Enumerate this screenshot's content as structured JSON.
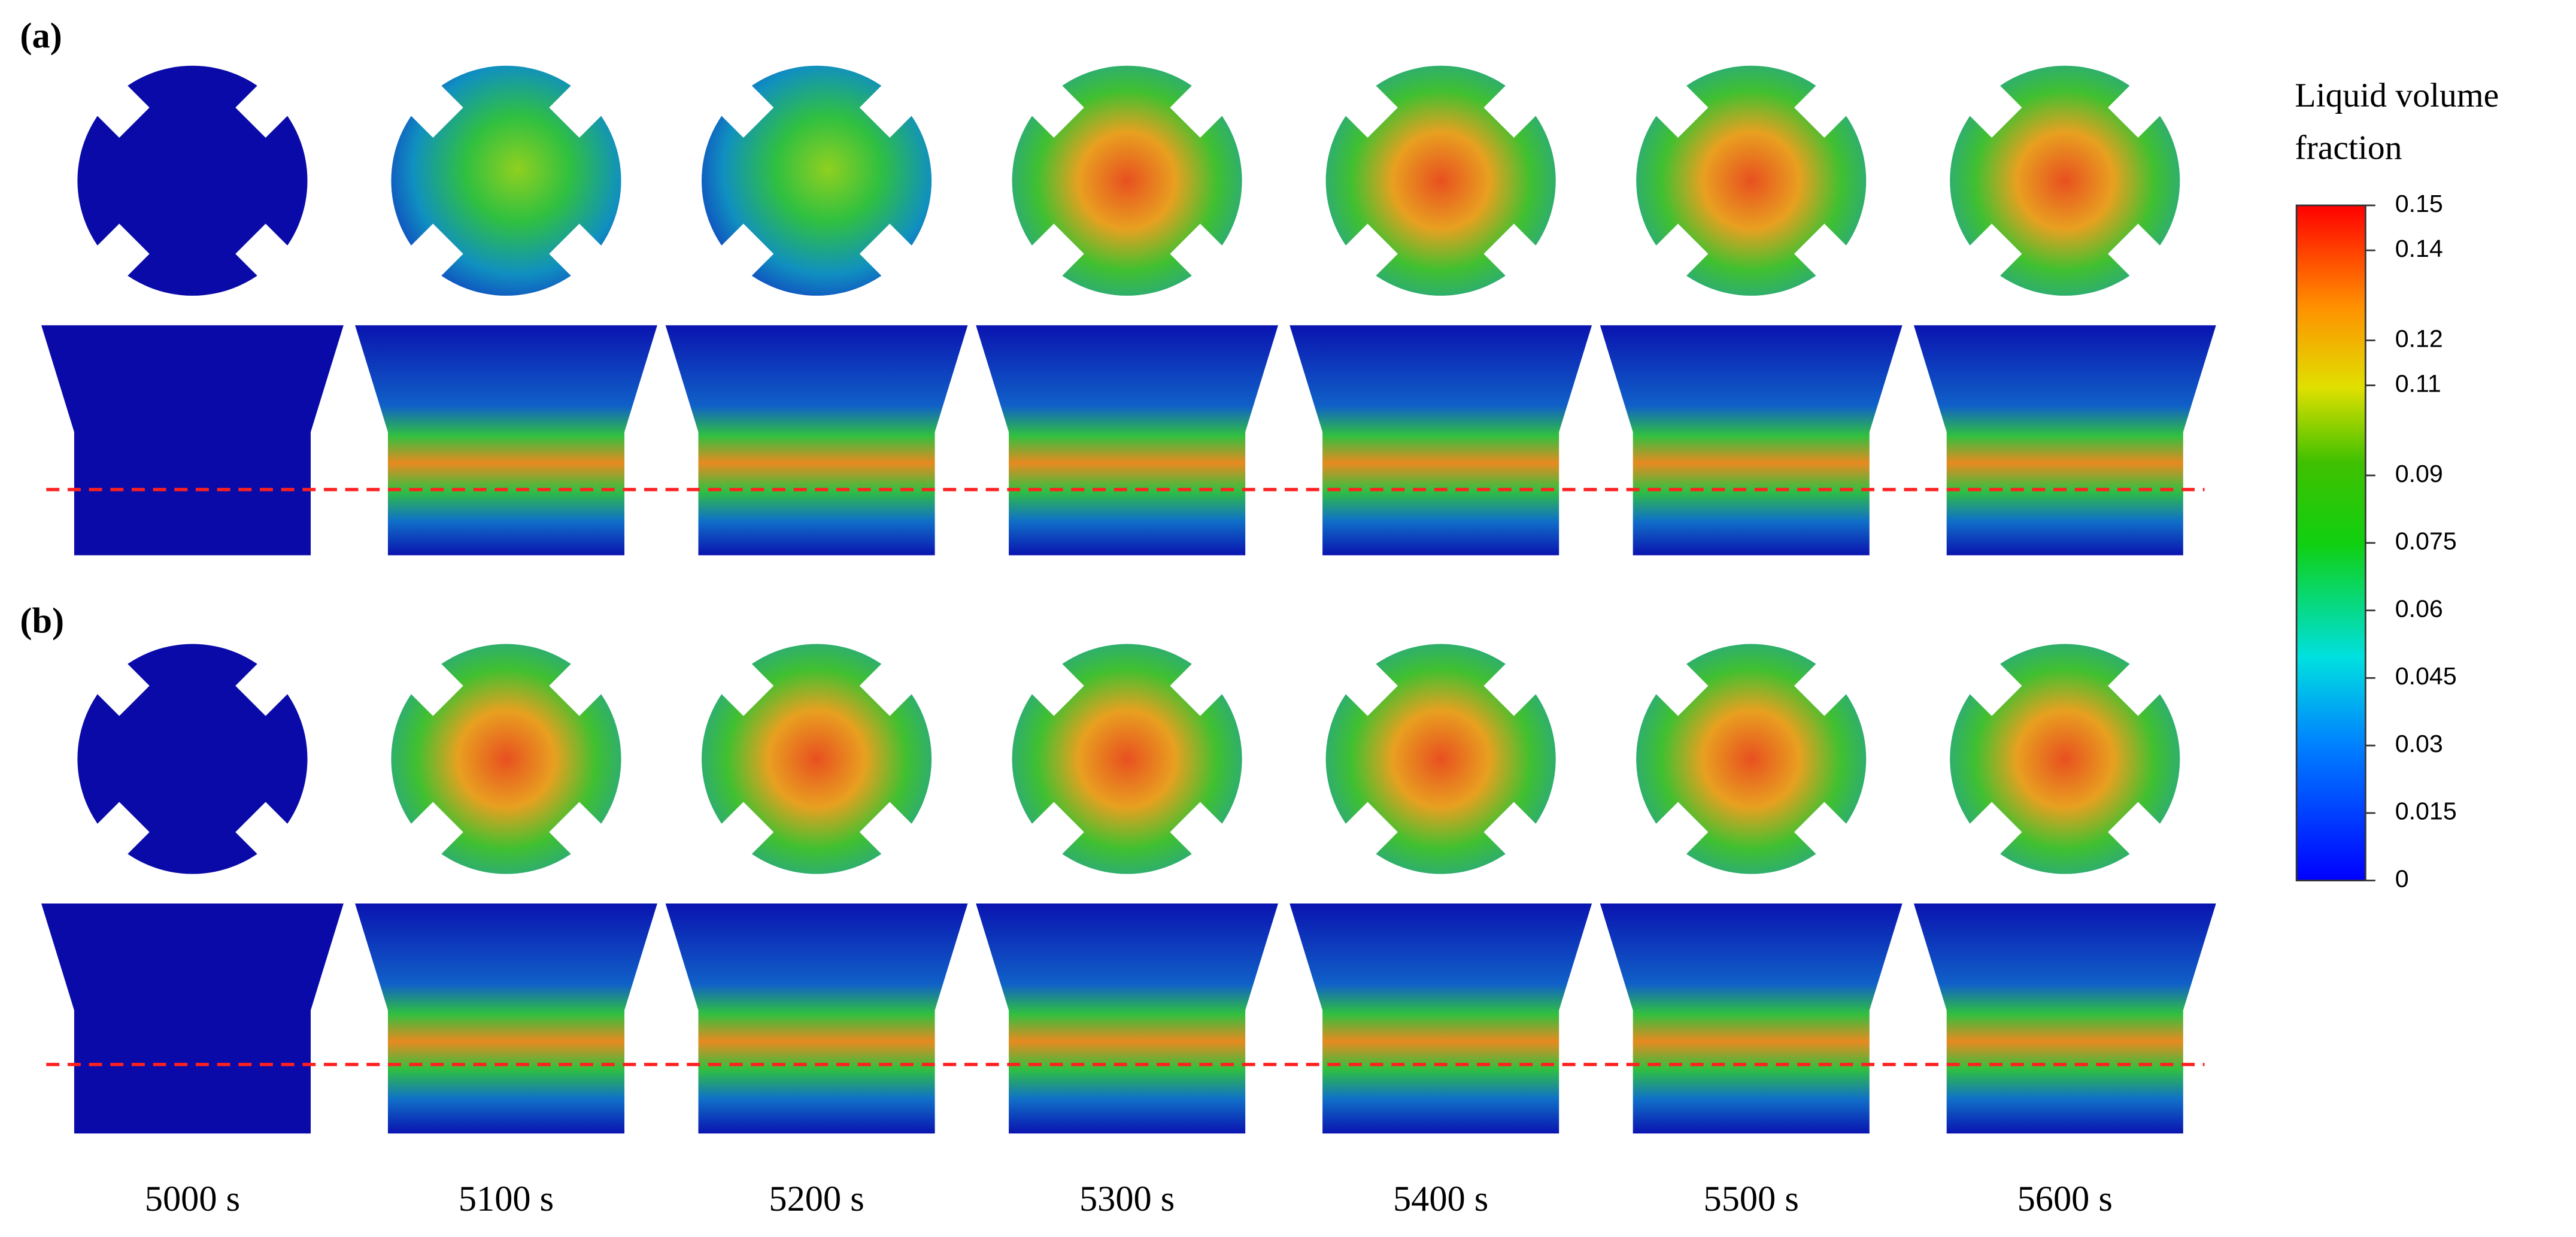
{
  "panels": [
    {
      "label": "(a)"
    },
    {
      "label": "(b)"
    }
  ],
  "times": [
    "5000 s",
    "5100 s",
    "5200 s",
    "5300 s",
    "5400 s",
    "5500 s",
    "5600 s"
  ],
  "colorbar": {
    "title_lines": [
      "Liquid volume",
      "fraction"
    ],
    "ticks": [
      0.15,
      0.14,
      0.12,
      0.11,
      0.09,
      0.075,
      0.06,
      0.045,
      0.03,
      0.015,
      0
    ]
  }
}
